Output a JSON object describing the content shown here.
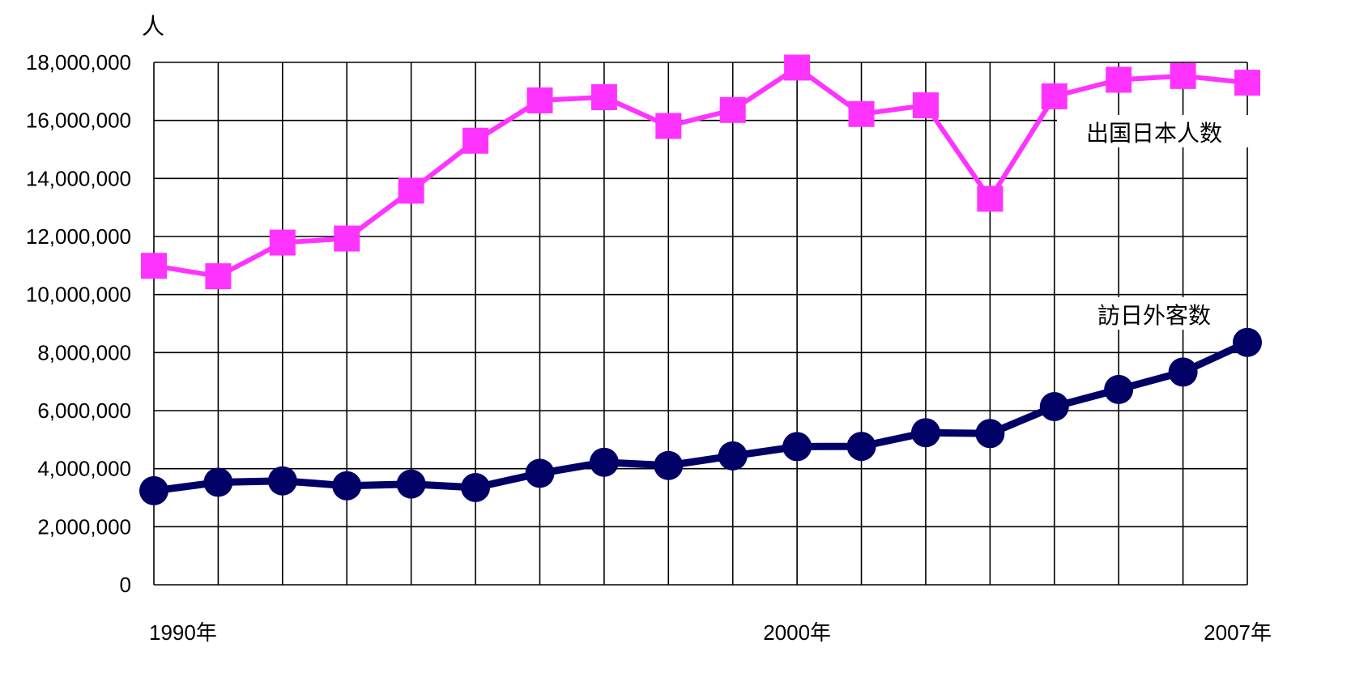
{
  "chart_data": {
    "type": "line",
    "unit_label": "人",
    "x": [
      1990,
      1991,
      1992,
      1993,
      1994,
      1995,
      1996,
      1997,
      1998,
      1999,
      2000,
      2001,
      2002,
      2003,
      2004,
      2005,
      2006,
      2007
    ],
    "x_tick_labels": [
      {
        "x": 1990,
        "label": "1990年"
      },
      {
        "x": 2000,
        "label": "2000年"
      },
      {
        "x": 2007,
        "label": "2007年"
      }
    ],
    "xlim": [
      1990,
      2007
    ],
    "ylim": [
      0,
      18000000
    ],
    "y_ticks": [
      0,
      2000000,
      4000000,
      6000000,
      8000000,
      10000000,
      12000000,
      14000000,
      16000000,
      18000000
    ],
    "y_tick_labels": [
      "0",
      "2,000,000",
      "4,000,000",
      "6,000,000",
      "8,000,000",
      "10,000,000",
      "12,000,000",
      "14,000,000",
      "16,000,000",
      "18,000,000"
    ],
    "grid": true,
    "series": [
      {
        "name": "出国日本人数",
        "color": "#ff33ff",
        "marker": "square",
        "values": [
          10990000,
          10630000,
          11790000,
          11930000,
          13580000,
          15300000,
          16690000,
          16800000,
          15810000,
          16360000,
          17820000,
          16220000,
          16520000,
          13300000,
          16830000,
          17400000,
          17530000,
          17300000
        ]
      },
      {
        "name": "訪日外客数",
        "color": "#000066",
        "marker": "circle",
        "values": [
          3240000,
          3530000,
          3580000,
          3410000,
          3470000,
          3350000,
          3840000,
          4220000,
          4110000,
          4440000,
          4760000,
          4770000,
          5240000,
          5210000,
          6140000,
          6730000,
          7330000,
          8350000
        ]
      }
    ]
  }
}
